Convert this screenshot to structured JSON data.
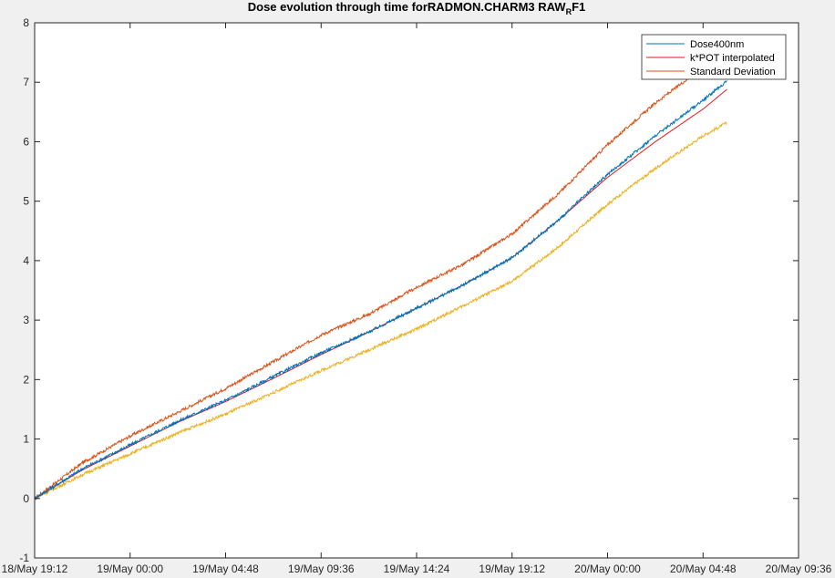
{
  "chart_data": {
    "type": "line",
    "title": "Dose evolution through time forRADMON.CHARM3 RAW",
    "title_sub": "R",
    "title_end": "F1",
    "xlabel": "",
    "ylabel": "",
    "xlim": [
      "18/May 19:12",
      "20/May 09:36"
    ],
    "x_tick_labels": [
      "18/May 19:12",
      "19/May 00:00",
      "19/May 04:48",
      "19/May 09:36",
      "19/May 14:24",
      "19/May 19:12",
      "20/May 00:00",
      "20/May 04:48",
      "20/May 09:36"
    ],
    "ylim": [
      -1,
      8
    ],
    "y_ticks": [
      -1,
      0,
      1,
      2,
      3,
      4,
      5,
      6,
      7,
      8
    ],
    "grid": false,
    "legend_position": "top-right",
    "x": [
      "18/May 19:12",
      "18/May 21:36",
      "19/May 00:00",
      "19/May 02:24",
      "19/May 04:48",
      "19/May 07:12",
      "19/May 09:36",
      "19/May 12:00",
      "19/May 14:24",
      "19/May 16:48",
      "19/May 19:12",
      "19/May 21:36",
      "20/May 00:00",
      "20/May 02:24",
      "20/May 04:48",
      "20/May 06:00"
    ],
    "series": [
      {
        "name": "Standard Deviation",
        "color": "#d95319",
        "values": [
          0.0,
          0.6,
          1.05,
          1.45,
          1.85,
          2.3,
          2.75,
          3.1,
          3.55,
          3.95,
          4.45,
          5.15,
          5.95,
          6.65,
          7.25,
          7.6
        ]
      },
      {
        "name": "Dose400nm",
        "color": "#0072bd",
        "values": [
          0.0,
          0.5,
          0.9,
          1.3,
          1.65,
          2.05,
          2.45,
          2.8,
          3.2,
          3.6,
          4.05,
          4.7,
          5.45,
          6.1,
          6.7,
          7.02
        ]
      },
      {
        "name": "k*POT interpolated",
        "color": "#e31a1c",
        "values": [
          0.0,
          0.48,
          0.88,
          1.28,
          1.63,
          2.02,
          2.42,
          2.8,
          3.2,
          3.6,
          4.05,
          4.7,
          5.4,
          6.0,
          6.55,
          6.88
        ]
      },
      {
        "name": "",
        "color": "#edb120",
        "values": [
          0.0,
          0.4,
          0.75,
          1.1,
          1.42,
          1.78,
          2.15,
          2.5,
          2.85,
          3.25,
          3.65,
          4.25,
          4.95,
          5.55,
          6.1,
          6.32
        ]
      }
    ],
    "legend": [
      "Dose400nm",
      "k*POT interpolated",
      "Standard Deviation"
    ]
  }
}
